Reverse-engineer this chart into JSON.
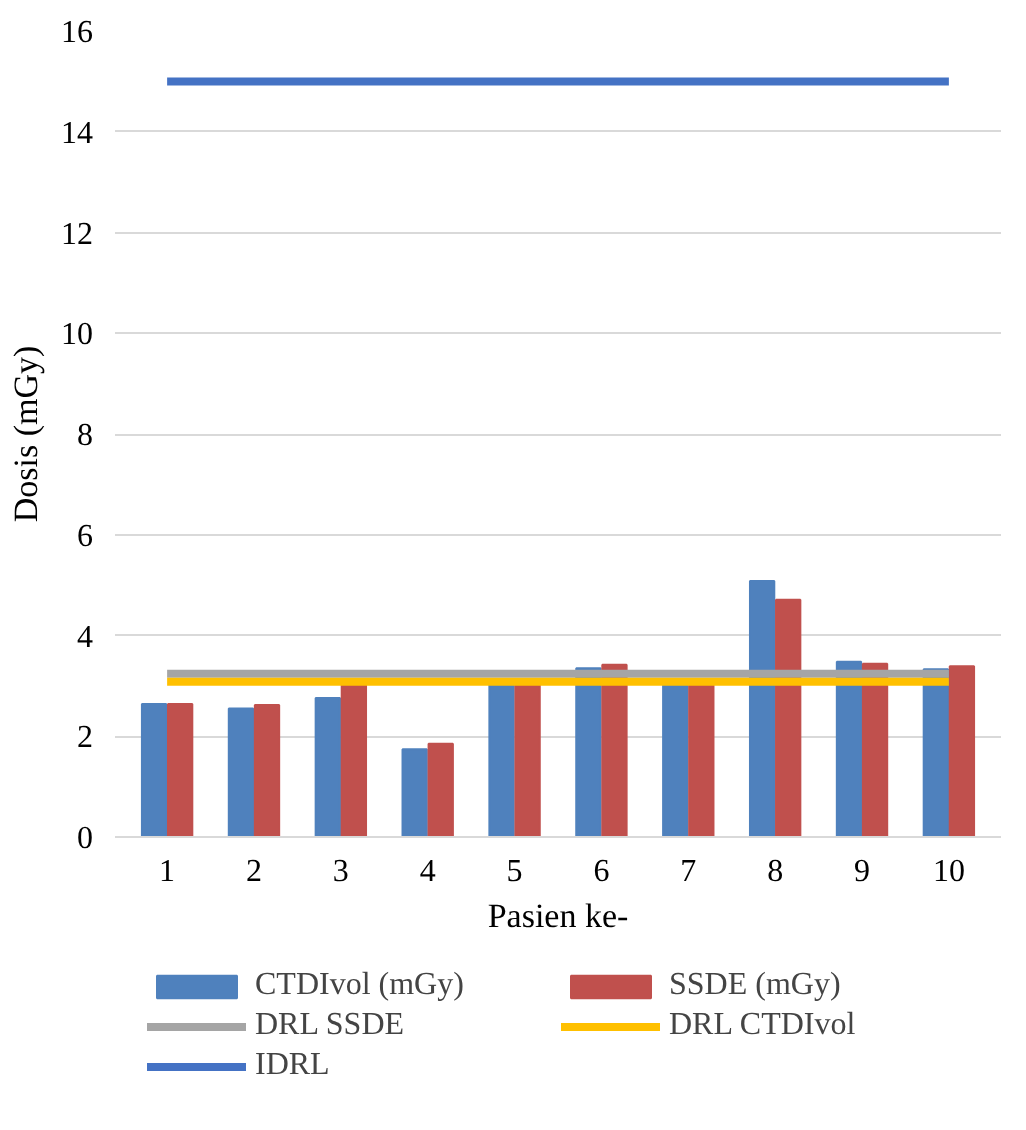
{
  "chart_data": {
    "type": "bar",
    "xlabel": "Pasien ke-",
    "ylabel": "Dosis (mGy)",
    "categories": [
      "1",
      "2",
      "3",
      "4",
      "5",
      "6",
      "7",
      "8",
      "9",
      "10"
    ],
    "series": [
      {
        "name": "CTDIvol (mGy)",
        "color": "#4f81bd",
        "values": [
          2.64,
          2.55,
          2.76,
          1.74,
          3.1,
          3.35,
          3.1,
          5.08,
          3.48,
          3.33
        ]
      },
      {
        "name": "SSDE (mGy)",
        "color": "#c0504d",
        "values": [
          2.64,
          2.62,
          3.05,
          1.85,
          3.1,
          3.42,
          3.1,
          4.71,
          3.44,
          3.39
        ]
      },
      {
        "name": "DRL SSDE",
        "type": "line",
        "color": "#a5a5a5",
        "values": [
          3.24,
          3.24,
          3.24,
          3.24,
          3.24,
          3.24,
          3.24,
          3.24,
          3.24,
          3.24
        ]
      },
      {
        "name": "DRL CTDIvol",
        "type": "line",
        "color": "#ffc000",
        "values": [
          3.08,
          3.08,
          3.08,
          3.08,
          3.08,
          3.08,
          3.08,
          3.08,
          3.08,
          3.08
        ]
      },
      {
        "name": "IDRL",
        "type": "line",
        "color": "#4472c4",
        "values": [
          15,
          15,
          15,
          15,
          15,
          15,
          15,
          15,
          15,
          15
        ]
      }
    ],
    "ylim": [
      0,
      16
    ],
    "yticks": [
      0,
      2,
      4,
      6,
      8,
      10,
      12,
      14,
      16
    ],
    "grid": "y",
    "legend": "bottom"
  }
}
